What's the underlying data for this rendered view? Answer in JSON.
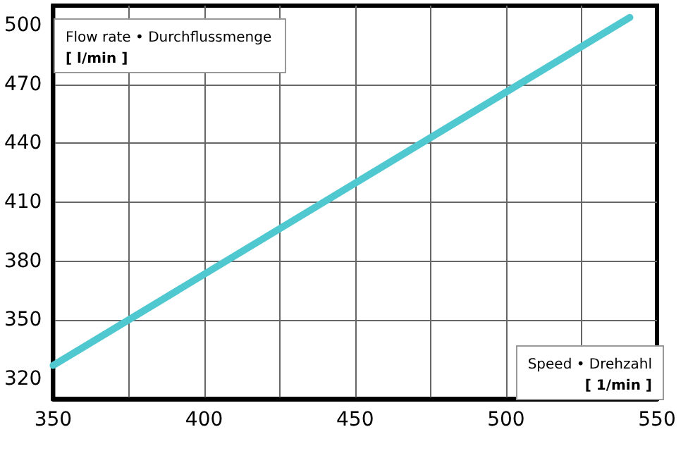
{
  "chart_data": {
    "type": "line",
    "xlabel": "Speed • Drehzahl\n[ 1/min ]",
    "ylabel": "Flow rate • Durchflussmenge\n[ l/min ]",
    "x": [
      350,
      541
    ],
    "series": [
      {
        "color": "#4fc8d0",
        "values": [
          327,
          504
        ]
      }
    ],
    "xlim": [
      350,
      550
    ],
    "xticks": [
      350,
      {
        "value": 375,
        "label": null
      },
      400,
      {
        "value": 425,
        "label": null
      },
      450,
      {
        "value": 475,
        "label": null
      },
      500,
      {
        "value": 525,
        "label": null
      },
      550
    ],
    "ylim": [
      310,
      510
    ],
    "yticks": [
      320,
      350,
      380,
      410,
      440,
      470,
      500
    ],
    "grid": true,
    "marker": "none",
    "line_style": "solid"
  }
}
